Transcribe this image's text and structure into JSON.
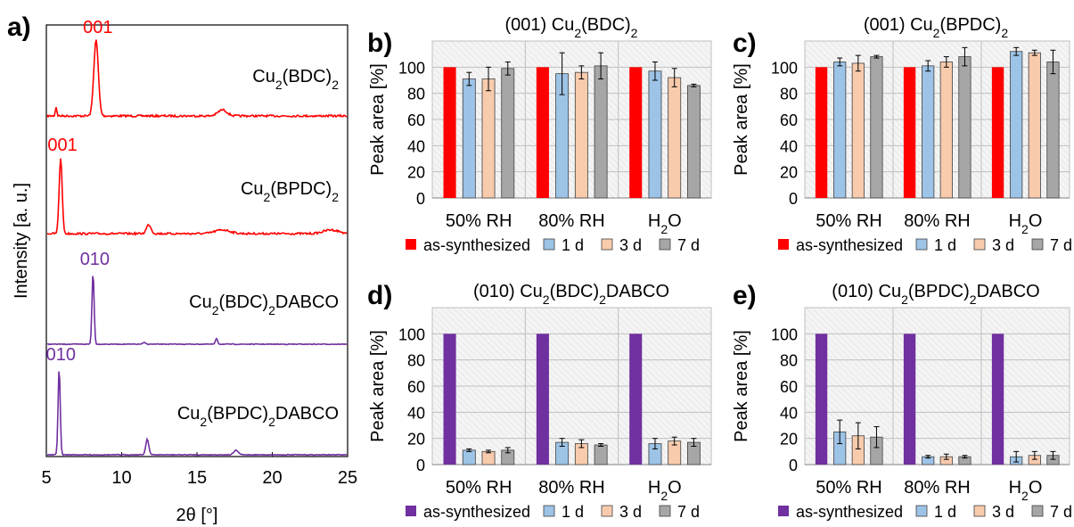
{
  "colors": {
    "red": "#ff0000",
    "purple": "#7030a0",
    "blue": "#9dc3e6",
    "peach": "#f8cbad",
    "gray": "#a6a6a6",
    "plot_bg": "#f2f2f2"
  },
  "chart_data": [
    {
      "panel": "a)",
      "type": "line",
      "xlabel": "2θ [°]",
      "ylabel": "Intensity [a. u.]",
      "xlim": [
        5,
        25
      ],
      "xticks": [
        5,
        10,
        15,
        20,
        25
      ],
      "series": [
        {
          "name_parts": [
            [
              "Cu",
              ""
            ],
            [
              "2",
              "sub"
            ],
            [
              "(BDC)",
              ""
            ],
            [
              "2",
              "sub"
            ]
          ],
          "color": "red",
          "peak_label": "001",
          "peak_label_x": 8.3,
          "peaks": [
            [
              8.3,
              1.0,
              0.15
            ],
            [
              5.65,
              0.12,
              0.05
            ],
            [
              16.7,
              0.08,
              0.3
            ]
          ]
        },
        {
          "name_parts": [
            [
              "Cu",
              ""
            ],
            [
              "2",
              "sub"
            ],
            [
              "(BPDC)",
              ""
            ],
            [
              "2",
              "sub"
            ]
          ],
          "color": "red",
          "peak_label": "001",
          "peak_label_x": 5.95,
          "peaks": [
            [
              5.95,
              1.0,
              0.1
            ],
            [
              11.8,
              0.12,
              0.15
            ],
            [
              16.7,
              0.05,
              0.5
            ],
            [
              23.9,
              0.05,
              0.5
            ]
          ]
        },
        {
          "name_parts": [
            [
              "Cu",
              ""
            ],
            [
              "2",
              "sub"
            ],
            [
              "(BDC)",
              ""
            ],
            [
              "2",
              "sub"
            ],
            [
              "DABCO",
              ""
            ]
          ],
          "color": "purple",
          "peak_label": "010",
          "peak_label_x": 8.1,
          "peaks": [
            [
              8.1,
              1.0,
              0.07
            ],
            [
              11.5,
              0.02,
              0.1
            ],
            [
              16.3,
              0.08,
              0.07
            ]
          ]
        },
        {
          "name_parts": [
            [
              "Cu",
              ""
            ],
            [
              "2",
              "sub"
            ],
            [
              "(BPDC)",
              ""
            ],
            [
              "2",
              "sub"
            ],
            [
              "DABCO",
              ""
            ]
          ],
          "color": "purple",
          "peak_label": "010",
          "peak_label_x": 5.85,
          "peaks": [
            [
              5.85,
              1.0,
              0.07
            ],
            [
              11.7,
              0.18,
              0.1
            ],
            [
              17.6,
              0.05,
              0.15
            ]
          ]
        }
      ]
    },
    {
      "panel": "b)",
      "type": "bar",
      "title_parts": [
        [
          "(001) Cu",
          ""
        ],
        [
          "2",
          "sub"
        ],
        [
          "(BDC)",
          ""
        ],
        [
          "2",
          "sub"
        ]
      ],
      "ylabel": "Peak area [%]",
      "ylim": [
        0,
        120
      ],
      "yticks": [
        0,
        20,
        40,
        60,
        80,
        100
      ],
      "categories": [
        [
          [
            "50% RH",
            ""
          ]
        ],
        [
          [
            "80% RH",
            ""
          ]
        ],
        [
          [
            "H",
            ""
          ],
          [
            "2",
            "sub"
          ],
          [
            "O",
            ""
          ]
        ]
      ],
      "series": [
        {
          "name": "as-synthesized",
          "color": "red",
          "values": [
            100,
            100,
            100
          ],
          "errors": [
            0,
            0,
            0
          ]
        },
        {
          "name": "1 d",
          "color": "blue",
          "values": [
            91,
            95,
            97
          ],
          "errors": [
            5,
            16,
            7
          ]
        },
        {
          "name": "3 d",
          "color": "peach",
          "values": [
            91,
            96,
            92
          ],
          "errors": [
            9,
            5,
            7
          ]
        },
        {
          "name": "7 d",
          "color": "gray",
          "values": [
            99,
            101,
            86
          ],
          "errors": [
            5,
            10,
            1
          ]
        }
      ]
    },
    {
      "panel": "c)",
      "type": "bar",
      "title_parts": [
        [
          "(001) Cu",
          ""
        ],
        [
          "2",
          "sub"
        ],
        [
          "(BPDC)",
          ""
        ],
        [
          "2",
          "sub"
        ]
      ],
      "ylabel": "Peak area [%]",
      "ylim": [
        0,
        120
      ],
      "yticks": [
        0,
        20,
        40,
        60,
        80,
        100
      ],
      "categories": [
        [
          [
            "50% RH",
            ""
          ]
        ],
        [
          [
            "80% RH",
            ""
          ]
        ],
        [
          [
            "H",
            ""
          ],
          [
            "2",
            "sub"
          ],
          [
            "O",
            ""
          ]
        ]
      ],
      "series": [
        {
          "name": "as-synthesized",
          "color": "red",
          "values": [
            100,
            100,
            100
          ],
          "errors": [
            0,
            0,
            0
          ]
        },
        {
          "name": "1 d",
          "color": "blue",
          "values": [
            104,
            101,
            112
          ],
          "errors": [
            3,
            4,
            3
          ]
        },
        {
          "name": "3 d",
          "color": "peach",
          "values": [
            103,
            104,
            111
          ],
          "errors": [
            6,
            4,
            2
          ]
        },
        {
          "name": "7 d",
          "color": "gray",
          "values": [
            108,
            108,
            104
          ],
          "errors": [
            1,
            7,
            9
          ]
        }
      ]
    },
    {
      "panel": "d)",
      "type": "bar",
      "title_parts": [
        [
          "(010) Cu",
          ""
        ],
        [
          "2",
          "sub"
        ],
        [
          "(BDC)",
          ""
        ],
        [
          "2",
          "sub"
        ],
        [
          "DABCO",
          ""
        ]
      ],
      "ylabel": "Peak area [%]",
      "ylim": [
        0,
        120
      ],
      "yticks": [
        0,
        20,
        40,
        60,
        80,
        100
      ],
      "categories": [
        [
          [
            "50% RH",
            ""
          ]
        ],
        [
          [
            "80% RH",
            ""
          ]
        ],
        [
          [
            "H",
            ""
          ],
          [
            "2",
            "sub"
          ],
          [
            "O",
            ""
          ]
        ]
      ],
      "series": [
        {
          "name": "as-synthesized",
          "color": "purple",
          "values": [
            100,
            100,
            100
          ],
          "errors": [
            0,
            0,
            0
          ]
        },
        {
          "name": "1 d",
          "color": "blue",
          "values": [
            11,
            17,
            16
          ],
          "errors": [
            1,
            3,
            4
          ]
        },
        {
          "name": "3 d",
          "color": "peach",
          "values": [
            10,
            16,
            18
          ],
          "errors": [
            1,
            3,
            3
          ]
        },
        {
          "name": "7 d",
          "color": "gray",
          "values": [
            11,
            15,
            17
          ],
          "errors": [
            2,
            1,
            3
          ]
        }
      ]
    },
    {
      "panel": "e)",
      "type": "bar",
      "title_parts": [
        [
          "(010) Cu",
          ""
        ],
        [
          "2",
          "sub"
        ],
        [
          "(BPDC)",
          ""
        ],
        [
          "2",
          "sub"
        ],
        [
          "DABCO",
          ""
        ]
      ],
      "ylabel": "Peak area [%]",
      "ylim": [
        0,
        120
      ],
      "yticks": [
        0,
        20,
        40,
        60,
        80,
        100
      ],
      "categories": [
        [
          [
            "50% RH",
            ""
          ]
        ],
        [
          [
            "80% RH",
            ""
          ]
        ],
        [
          [
            "H",
            ""
          ],
          [
            "2",
            "sub"
          ],
          [
            "O",
            ""
          ]
        ]
      ],
      "series": [
        {
          "name": "as-synthesized",
          "color": "purple",
          "values": [
            100,
            100,
            100
          ],
          "errors": [
            0,
            0,
            0
          ]
        },
        {
          "name": "1 d",
          "color": "blue",
          "values": [
            25,
            6,
            6
          ],
          "errors": [
            9,
            1,
            4
          ]
        },
        {
          "name": "3 d",
          "color": "peach",
          "values": [
            22,
            6,
            7
          ],
          "errors": [
            10,
            2,
            3
          ]
        },
        {
          "name": "7 d",
          "color": "gray",
          "values": [
            21,
            6,
            7
          ],
          "errors": [
            8,
            1,
            3
          ]
        }
      ]
    }
  ]
}
